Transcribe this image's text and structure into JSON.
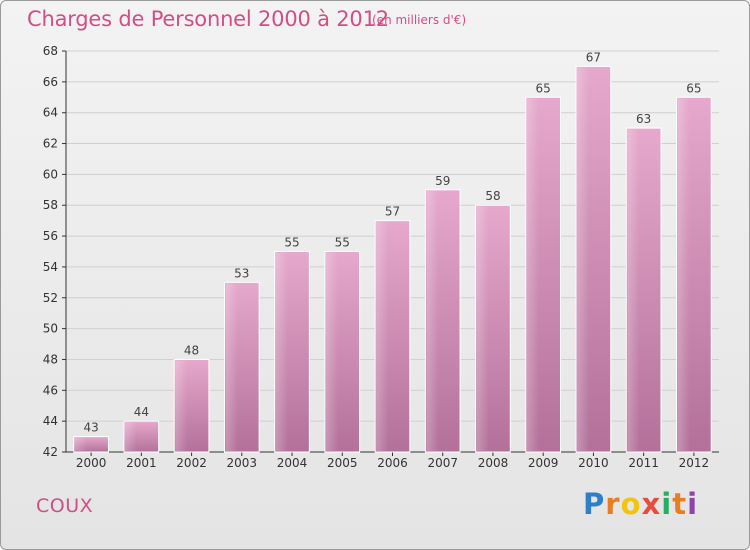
{
  "header": {
    "title": "Charges de Personnel 2000 à 2012",
    "subtitle": "(en milliers d'€)"
  },
  "footer": {
    "commune": "COUX",
    "logo_text": "Proxiti"
  },
  "colors": {
    "title": "#d04f86",
    "bar_light": "#e6a8cc",
    "bar_dark": "#b3719a",
    "axis": "#333333"
  },
  "chart_data": {
    "type": "bar",
    "categories": [
      "2000",
      "2001",
      "2002",
      "2003",
      "2004",
      "2005",
      "2006",
      "2007",
      "2008",
      "2009",
      "2010",
      "2011",
      "2012"
    ],
    "values": [
      43,
      44,
      48,
      53,
      55,
      55,
      57,
      59,
      58,
      65,
      67,
      63,
      65
    ],
    "data_labels": [
      "43",
      "44",
      "48",
      "53",
      "55",
      "55",
      "57",
      "59",
      "58",
      "65",
      "67",
      "63",
      "65"
    ],
    "title": "Charges de Personnel 2000 à 2012",
    "subtitle": "(en milliers d'€)",
    "xlabel": "",
    "ylabel": "",
    "ylim": [
      42,
      68
    ],
    "yticks": [
      42,
      44,
      46,
      48,
      50,
      52,
      54,
      56,
      58,
      60,
      62,
      64,
      66,
      68
    ],
    "grid": true,
    "legend": "none"
  }
}
